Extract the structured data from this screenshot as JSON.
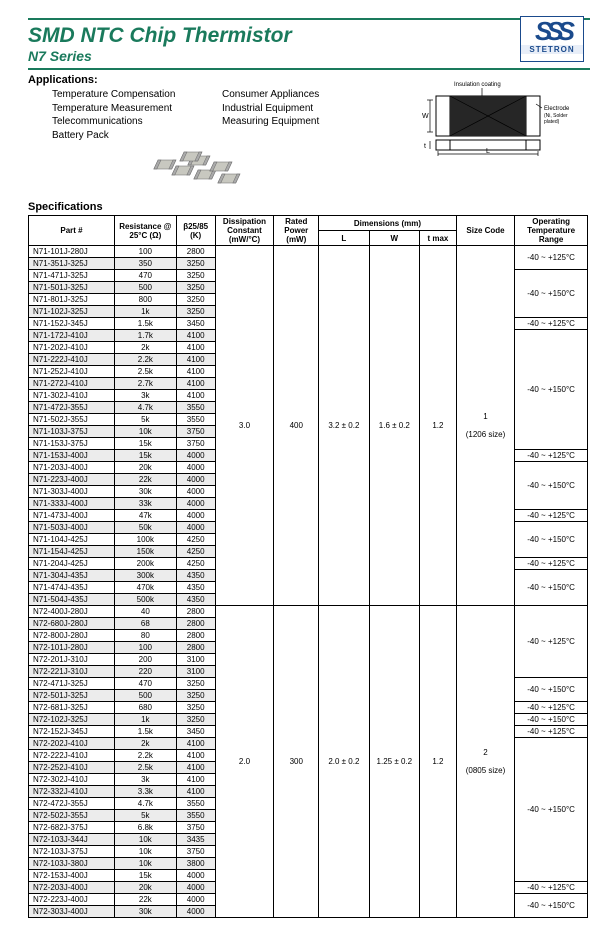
{
  "header": {
    "title": "SMD NTC Chip Thermistor",
    "subtitle": "N7 Series",
    "logo_letters": "SSS",
    "logo_text": "STETRON"
  },
  "applications": {
    "heading": "Applications:",
    "col1": [
      "Temperature Compensation",
      "Temperature Measurement",
      "Telecommunications",
      "Battery Pack"
    ],
    "col2": [
      "Consumer Appliances",
      "Industrial Equipment",
      "Measuring Equipment"
    ]
  },
  "diagram": {
    "insulation": "Insulation coating",
    "electrode": "Electrode (Ni, Solder plated)",
    "L": "L",
    "W": "W",
    "t": "t"
  },
  "spec_heading": "Specifications",
  "columns": {
    "part": "Part #",
    "res": "Resistance @ 25°C (Ω)",
    "beta": "β25/85 (K)",
    "diss": "Dissipation Constant (mW/°C)",
    "power": "Rated Power (mW)",
    "dim": "Dimensions (mm)",
    "L": "L",
    "W": "W",
    "t": "t max",
    "size": "Size Code",
    "temp": "Operating Temperature Range"
  },
  "block1": {
    "diss": "3.0",
    "power": "400",
    "L": "3.2 ± 0.2",
    "W": "1.6 ± 0.2",
    "t": "1.2",
    "size": "1",
    "size_note": "(1206 size)"
  },
  "block2": {
    "diss": "2.0",
    "power": "300",
    "L": "2.0 ± 0.2",
    "W": "1.25 ± 0.2",
    "t": "1.2",
    "size": "2",
    "size_note": "(0805 size)"
  },
  "temps": {
    "a": "-40 ~ +125°C",
    "b": "-40 ~ +150°C"
  },
  "table1": [
    {
      "p": "N71-101J-280J",
      "r": "100",
      "b": "2800",
      "g": 0
    },
    {
      "p": "N71-351J-325J",
      "r": "350",
      "b": "3250",
      "g": 1
    },
    {
      "p": "N71-471J-325J",
      "r": "470",
      "b": "3250",
      "g": 0
    },
    {
      "p": "N71-501J-325J",
      "r": "500",
      "b": "3250",
      "g": 1
    },
    {
      "p": "N71-801J-325J",
      "r": "800",
      "b": "3250",
      "g": 0
    },
    {
      "p": "N71-102J-325J",
      "r": "1k",
      "b": "3250",
      "g": 1
    },
    {
      "p": "N71-152J-345J",
      "r": "1.5k",
      "b": "3450",
      "g": 0
    },
    {
      "p": "N71-172J-410J",
      "r": "1.7k",
      "b": "4100",
      "g": 1
    },
    {
      "p": "N71-202J-410J",
      "r": "2k",
      "b": "4100",
      "g": 0
    },
    {
      "p": "N71-222J-410J",
      "r": "2.2k",
      "b": "4100",
      "g": 1
    },
    {
      "p": "N71-252J-410J",
      "r": "2.5k",
      "b": "4100",
      "g": 0
    },
    {
      "p": "N71-272J-410J",
      "r": "2.7k",
      "b": "4100",
      "g": 1
    },
    {
      "p": "N71-302J-410J",
      "r": "3k",
      "b": "4100",
      "g": 0
    },
    {
      "p": "N71-472J-355J",
      "r": "4.7k",
      "b": "3550",
      "g": 1
    },
    {
      "p": "N71-502J-355J",
      "r": "5k",
      "b": "3550",
      "g": 0
    },
    {
      "p": "N71-103J-375J",
      "r": "10k",
      "b": "3750",
      "g": 1
    },
    {
      "p": "N71-153J-375J",
      "r": "15k",
      "b": "3750",
      "g": 0
    },
    {
      "p": "N71-153J-400J",
      "r": "15k",
      "b": "4000",
      "g": 1
    },
    {
      "p": "N71-203J-400J",
      "r": "20k",
      "b": "4000",
      "g": 0
    },
    {
      "p": "N71-223J-400J",
      "r": "22k",
      "b": "4000",
      "g": 1
    },
    {
      "p": "N71-303J-400J",
      "r": "30k",
      "b": "4000",
      "g": 0
    },
    {
      "p": "N71-333J-400J",
      "r": "33k",
      "b": "4000",
      "g": 1
    },
    {
      "p": "N71-473J-400J",
      "r": "47k",
      "b": "4000",
      "g": 0
    },
    {
      "p": "N71-503J-400J",
      "r": "50k",
      "b": "4000",
      "g": 1
    },
    {
      "p": "N71-104J-425J",
      "r": "100k",
      "b": "4250",
      "g": 0
    },
    {
      "p": "N71-154J-425J",
      "r": "150k",
      "b": "4250",
      "g": 1
    },
    {
      "p": "N71-204J-425J",
      "r": "200k",
      "b": "4250",
      "g": 0
    },
    {
      "p": "N71-304J-435J",
      "r": "300k",
      "b": "4350",
      "g": 1
    },
    {
      "p": "N71-474J-435J",
      "r": "470k",
      "b": "4350",
      "g": 0
    },
    {
      "p": "N71-504J-435J",
      "r": "500k",
      "b": "4350",
      "g": 1
    }
  ],
  "temps1": [
    {
      "n": 2,
      "k": "a"
    },
    {
      "n": 4,
      "k": "b"
    },
    {
      "n": 1,
      "k": "a"
    },
    {
      "n": 10,
      "k": "b"
    },
    {
      "n": 1,
      "k": "a"
    },
    {
      "n": 4,
      "k": "b"
    },
    {
      "n": 1,
      "k": "a"
    },
    {
      "n": 3,
      "k": "b"
    },
    {
      "n": 1,
      "k": "a"
    },
    {
      "n": 3,
      "k": "b"
    }
  ],
  "table2": [
    {
      "p": "N72-400J-280J",
      "r": "40",
      "b": "2800",
      "g": 0
    },
    {
      "p": "N72-680J-280J",
      "r": "68",
      "b": "2800",
      "g": 1
    },
    {
      "p": "N72-800J-280J",
      "r": "80",
      "b": "2800",
      "g": 0
    },
    {
      "p": "N72-101J-280J",
      "r": "100",
      "b": "2800",
      "g": 1
    },
    {
      "p": "N72-201J-310J",
      "r": "200",
      "b": "3100",
      "g": 0
    },
    {
      "p": "N72-221J-310J",
      "r": "220",
      "b": "3100",
      "g": 1
    },
    {
      "p": "N72-471J-325J",
      "r": "470",
      "b": "3250",
      "g": 0
    },
    {
      "p": "N72-501J-325J",
      "r": "500",
      "b": "3250",
      "g": 1
    },
    {
      "p": "N72-681J-325J",
      "r": "680",
      "b": "3250",
      "g": 0
    },
    {
      "p": "N72-102J-325J",
      "r": "1k",
      "b": "3250",
      "g": 1
    },
    {
      "p": "N72-152J-345J",
      "r": "1.5k",
      "b": "3450",
      "g": 0
    },
    {
      "p": "N72-202J-410J",
      "r": "2k",
      "b": "4100",
      "g": 1
    },
    {
      "p": "N72-222J-410J",
      "r": "2.2k",
      "b": "4100",
      "g": 0
    },
    {
      "p": "N72-252J-410J",
      "r": "2.5k",
      "b": "4100",
      "g": 1
    },
    {
      "p": "N72-302J-410J",
      "r": "3k",
      "b": "4100",
      "g": 0
    },
    {
      "p": "N72-332J-410J",
      "r": "3.3k",
      "b": "4100",
      "g": 1
    },
    {
      "p": "N72-472J-355J",
      "r": "4.7k",
      "b": "3550",
      "g": 0
    },
    {
      "p": "N72-502J-355J",
      "r": "5k",
      "b": "3550",
      "g": 1
    },
    {
      "p": "N72-682J-375J",
      "r": "6.8k",
      "b": "3750",
      "g": 0
    },
    {
      "p": "N72-103J-344J",
      "r": "10k",
      "b": "3435",
      "g": 1
    },
    {
      "p": "N72-103J-375J",
      "r": "10k",
      "b": "3750",
      "g": 0
    },
    {
      "p": "N72-103J-380J",
      "r": "10k",
      "b": "3800",
      "g": 1
    },
    {
      "p": "N72-153J-400J",
      "r": "15k",
      "b": "4000",
      "g": 0
    },
    {
      "p": "N72-203J-400J",
      "r": "20k",
      "b": "4000",
      "g": 1
    },
    {
      "p": "N72-223J-400J",
      "r": "22k",
      "b": "4000",
      "g": 0
    },
    {
      "p": "N72-303J-400J",
      "r": "30k",
      "b": "4000",
      "g": 1
    }
  ],
  "temps2": [
    {
      "n": 6,
      "k": "a"
    },
    {
      "n": 2,
      "k": "b"
    },
    {
      "n": 1,
      "k": "a"
    },
    {
      "n": 1,
      "k": "b"
    },
    {
      "n": 1,
      "k": "a"
    },
    {
      "n": 12,
      "k": "b"
    },
    {
      "n": 1,
      "k": "a"
    },
    {
      "n": 2,
      "k": "b"
    }
  ],
  "colors": {
    "accent": "#1a7a5c",
    "grey": "#ececec"
  }
}
